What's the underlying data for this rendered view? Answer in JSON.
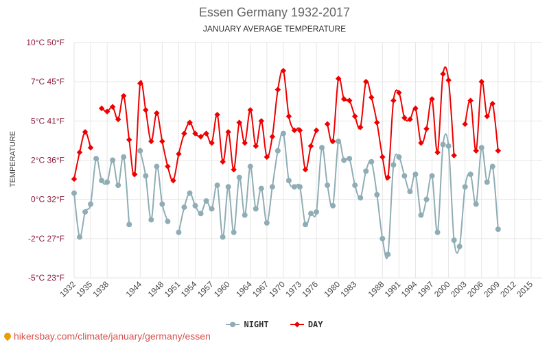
{
  "colors": {
    "night": "#8fadb5",
    "day": "#ee0000",
    "grid": "#e6e6e6",
    "axis_text": "#8b1a3a",
    "source": "#d9534f"
  },
  "chart_data": {
    "type": "line",
    "title": "Essen Germany 1932-2017",
    "subtitle": "JANUARY AVERAGE TEMPERATURE",
    "ylabel": "TEMPERATURE",
    "xlabel": "",
    "ylim": [
      -5,
      10
    ],
    "x_range": [
      1932,
      2017
    ],
    "x_ticks": [
      1932,
      1935,
      1938,
      1944,
      1948,
      1951,
      1954,
      1957,
      1960,
      1964,
      1967,
      1970,
      1973,
      1976,
      1980,
      1983,
      1988,
      1991,
      1994,
      1997,
      2000,
      2003,
      2006,
      2009,
      2012,
      2015
    ],
    "y_ticks": [
      {
        "value": 10,
        "label": "10°C 50°F"
      },
      {
        "value": 7.5,
        "label": "7°C 45°F"
      },
      {
        "value": 5,
        "label": "5°C 41°F"
      },
      {
        "value": 2.5,
        "label": "2°C 36°F"
      },
      {
        "value": 0,
        "label": "0°C 32°F"
      },
      {
        "value": -2.5,
        "label": "-2°C 27°F"
      },
      {
        "value": -5,
        "label": "-5°C 23°F"
      }
    ],
    "grid": true,
    "legend": "bottom",
    "series": [
      {
        "name": "NIGHT",
        "marker": "circle",
        "points": [
          [
            1932,
            0.4
          ],
          [
            1933,
            -2.4
          ],
          [
            1934,
            -0.8
          ],
          [
            1935,
            -0.3
          ],
          [
            1936,
            2.6
          ],
          [
            1937,
            1.2
          ],
          [
            1938,
            1.1
          ],
          [
            1939,
            2.5
          ],
          [
            1940,
            0.9
          ],
          [
            1941,
            2.7
          ],
          [
            1942,
            -1.6
          ],
          [
            1944,
            3.1
          ],
          [
            1945,
            1.5
          ],
          [
            1946,
            -1.3
          ],
          [
            1947,
            2.1
          ],
          [
            1948,
            -0.3
          ],
          [
            1949,
            -1.4
          ],
          [
            1951,
            -2.1
          ],
          [
            1952,
            -0.5
          ],
          [
            1953,
            0.4
          ],
          [
            1954,
            -0.4
          ],
          [
            1955,
            -0.9
          ],
          [
            1956,
            -0.1
          ],
          [
            1957,
            -0.6
          ],
          [
            1958,
            0.9
          ],
          [
            1959,
            -2.4
          ],
          [
            1960,
            0.8
          ],
          [
            1961,
            -2.1
          ],
          [
            1962,
            1.4
          ],
          [
            1963,
            -1.0
          ],
          [
            1964,
            2.1
          ],
          [
            1965,
            -0.6
          ],
          [
            1966,
            0.7
          ],
          [
            1967,
            -1.5
          ],
          [
            1968,
            0.8
          ],
          [
            1969,
            3.1
          ],
          [
            1970,
            4.2
          ],
          [
            1971,
            1.2
          ],
          [
            1972,
            0.8
          ],
          [
            1973,
            0.8
          ],
          [
            1974,
            -1.6
          ],
          [
            1975,
            -0.9
          ],
          [
            1976,
            -0.8
          ],
          [
            1977,
            3.3
          ],
          [
            1978,
            0.9
          ],
          [
            1979,
            -0.4
          ],
          [
            1980,
            3.7
          ],
          [
            1981,
            2.5
          ],
          [
            1982,
            2.6
          ],
          [
            1983,
            0.9
          ],
          [
            1984,
            0.1
          ],
          [
            1985,
            1.8
          ],
          [
            1986,
            2.4
          ],
          [
            1987,
            0.3
          ],
          [
            1988,
            -2.5
          ],
          [
            1989,
            -3.5
          ],
          [
            1990,
            2.2
          ],
          [
            1991,
            2.7
          ],
          [
            1992,
            1.5
          ],
          [
            1993,
            0.5
          ],
          [
            1994,
            1.6
          ],
          [
            1995,
            -1.0
          ],
          [
            1996,
            0.0
          ],
          [
            1997,
            1.5
          ],
          [
            1998,
            -2.1
          ],
          [
            1999,
            3.5
          ],
          [
            2000,
            3.4
          ],
          [
            2001,
            -2.6
          ],
          [
            2002,
            -3.0
          ],
          [
            2003,
            0.8
          ],
          [
            2004,
            1.6
          ],
          [
            2005,
            -0.3
          ],
          [
            2006,
            3.3
          ],
          [
            2007,
            1.1
          ],
          [
            2008,
            2.1
          ],
          [
            2009,
            -1.9
          ]
        ]
      },
      {
        "name": "DAY",
        "marker": "diamond",
        "points": [
          [
            1932,
            1.3
          ],
          [
            1933,
            3.0
          ],
          [
            1934,
            4.3
          ],
          [
            1935,
            3.3
          ],
          [
            1937,
            5.8
          ],
          [
            1938,
            5.6
          ],
          [
            1939,
            5.9
          ],
          [
            1940,
            5.1
          ],
          [
            1941,
            6.6
          ],
          [
            1942,
            3.8
          ],
          [
            1943,
            1.6
          ],
          [
            1944,
            7.4
          ],
          [
            1945,
            5.7
          ],
          [
            1946,
            3.7
          ],
          [
            1947,
            5.5
          ],
          [
            1948,
            3.7
          ],
          [
            1949,
            2.1
          ],
          [
            1950,
            1.2
          ],
          [
            1951,
            2.9
          ],
          [
            1952,
            4.2
          ],
          [
            1953,
            4.9
          ],
          [
            1954,
            4.2
          ],
          [
            1955,
            4.0
          ],
          [
            1956,
            4.2
          ],
          [
            1957,
            3.6
          ],
          [
            1958,
            5.4
          ],
          [
            1959,
            2.4
          ],
          [
            1960,
            4.3
          ],
          [
            1961,
            1.9
          ],
          [
            1962,
            4.9
          ],
          [
            1963,
            3.6
          ],
          [
            1964,
            5.7
          ],
          [
            1965,
            3.4
          ],
          [
            1966,
            5.0
          ],
          [
            1967,
            2.7
          ],
          [
            1968,
            4.0
          ],
          [
            1969,
            7.0
          ],
          [
            1970,
            8.2
          ],
          [
            1971,
            5.3
          ],
          [
            1972,
            4.4
          ],
          [
            1973,
            4.4
          ],
          [
            1974,
            1.9
          ],
          [
            1975,
            3.4
          ],
          [
            1976,
            4.4
          ],
          [
            1978,
            4.8
          ],
          [
            1979,
            3.7
          ],
          [
            1980,
            7.7
          ],
          [
            1981,
            6.4
          ],
          [
            1982,
            6.3
          ],
          [
            1983,
            5.3
          ],
          [
            1984,
            4.6
          ],
          [
            1985,
            7.5
          ],
          [
            1986,
            6.5
          ],
          [
            1987,
            4.9
          ],
          [
            1988,
            2.7
          ],
          [
            1989,
            1.4
          ],
          [
            1990,
            6.3
          ],
          [
            1991,
            6.8
          ],
          [
            1992,
            5.2
          ],
          [
            1993,
            5.1
          ],
          [
            1994,
            5.8
          ],
          [
            1995,
            3.6
          ],
          [
            1996,
            4.5
          ],
          [
            1997,
            6.4
          ],
          [
            1998,
            3.0
          ],
          [
            1999,
            8.0
          ],
          [
            2000,
            7.6
          ],
          [
            2001,
            2.8
          ],
          [
            2003,
            4.8
          ],
          [
            2004,
            6.3
          ],
          [
            2005,
            3.1
          ],
          [
            2006,
            7.5
          ],
          [
            2007,
            5.3
          ],
          [
            2008,
            6.1
          ],
          [
            2009,
            3.1
          ]
        ]
      }
    ]
  },
  "source": "hikersbay.com/climate/january/germany/essen",
  "icons": {
    "source": "pin-icon"
  }
}
